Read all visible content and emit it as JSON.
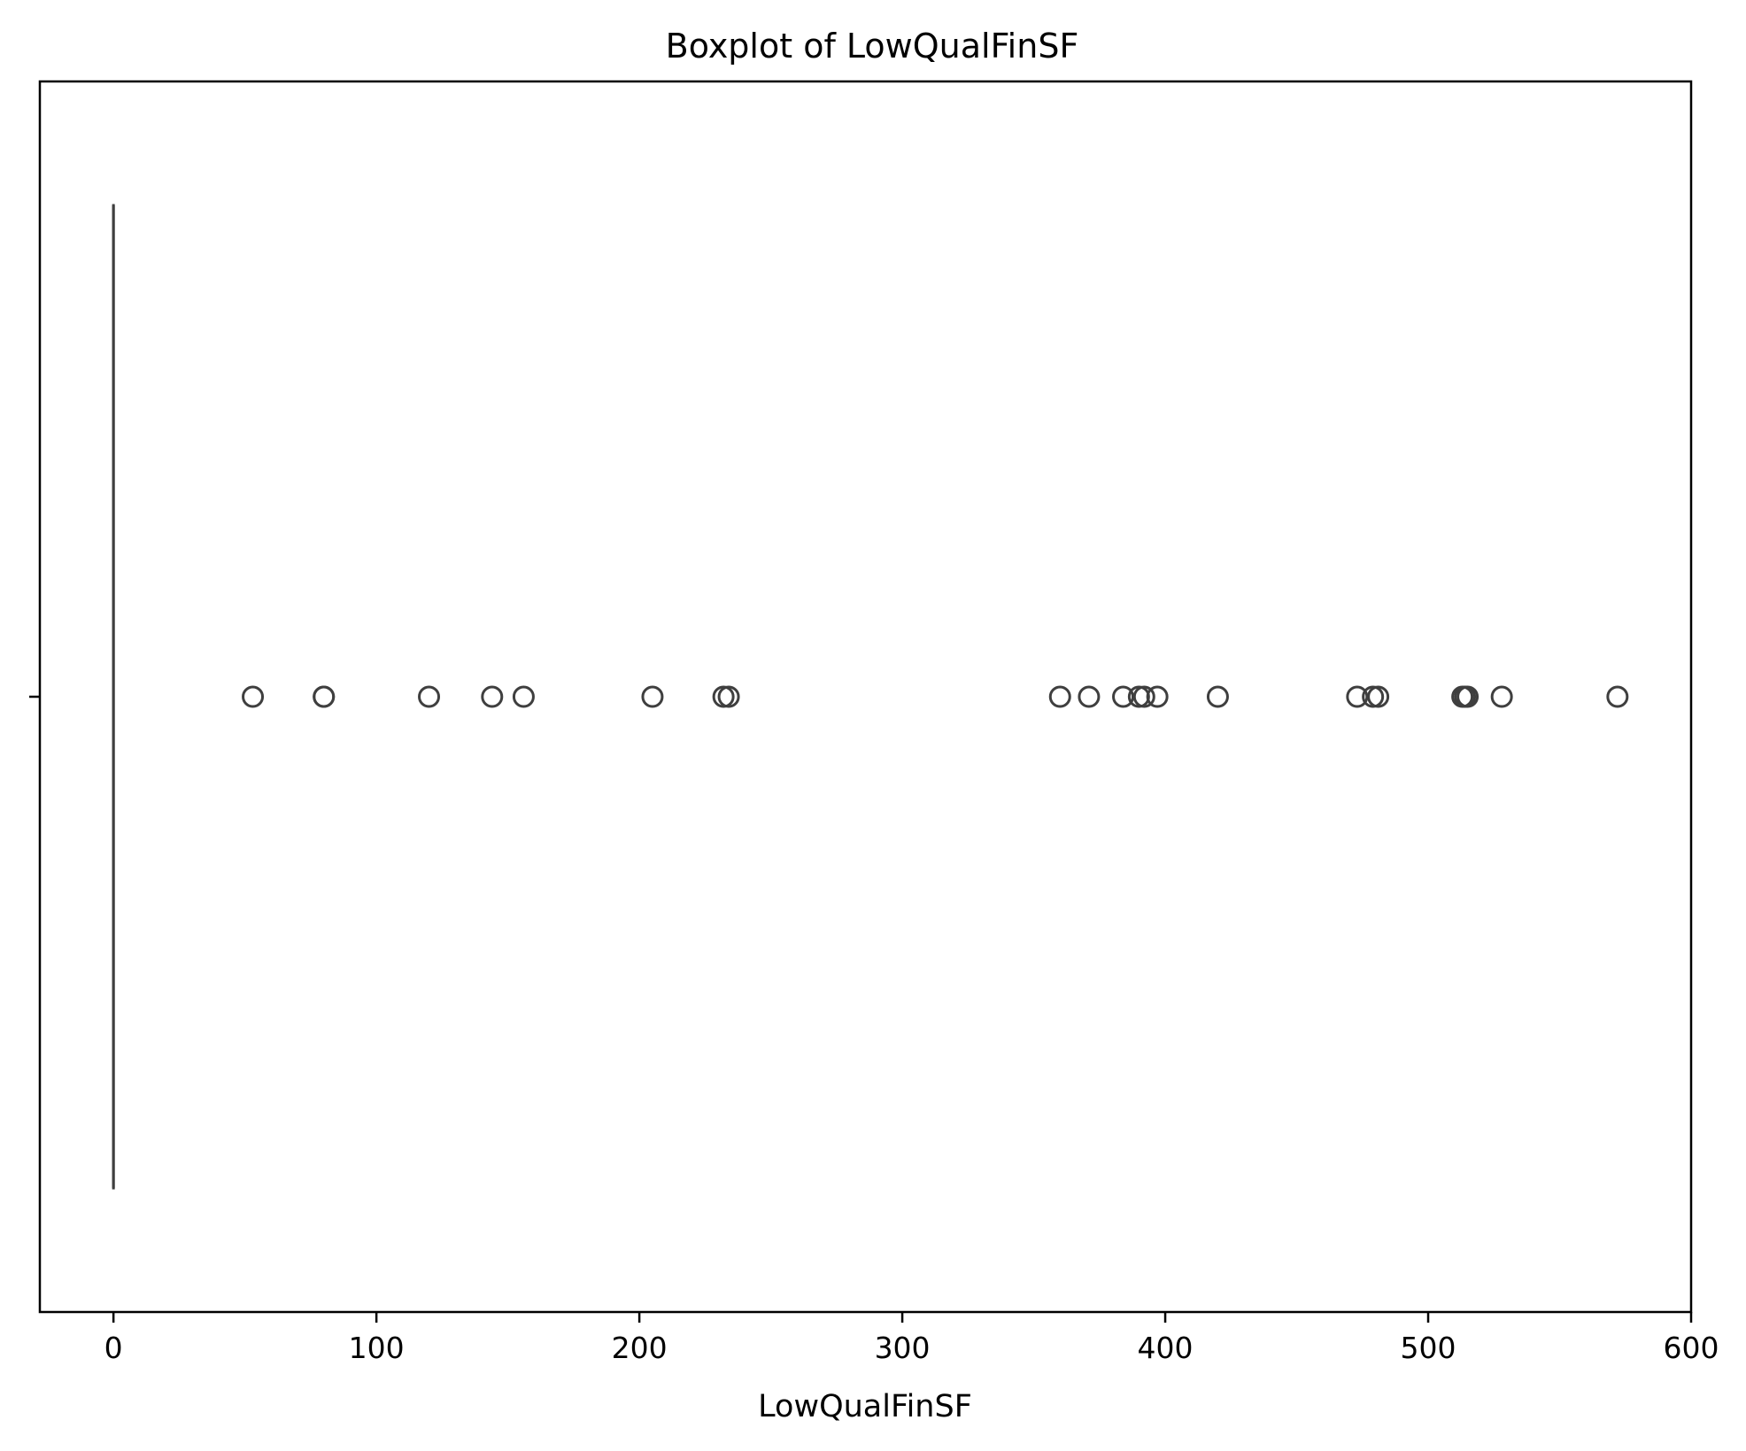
{
  "chart_data": {
    "type": "boxplot",
    "orientation": "horizontal",
    "title": "Boxplot of LowQualFinSF",
    "xlabel": "LowQualFinSF",
    "ylabel": "",
    "xlim": [
      -28,
      600
    ],
    "x_ticks": [
      0,
      100,
      200,
      300,
      400,
      500,
      600
    ],
    "x_tick_labels": [
      "0",
      "100",
      "200",
      "300",
      "400",
      "500",
      "600"
    ],
    "grid": false,
    "legend": "none",
    "box": {
      "min": 0,
      "q1": 0,
      "median": 0,
      "q3": 0,
      "max": 0
    },
    "outliers": [
      53,
      80,
      80,
      120,
      144,
      156,
      205,
      232,
      234,
      360,
      371,
      384,
      390,
      392,
      397,
      420,
      473,
      479,
      481,
      513,
      514,
      515,
      528,
      572
    ],
    "colors": {
      "box_line": "#3f3f3f",
      "axes": "#000000",
      "background": "#ffffff"
    }
  }
}
